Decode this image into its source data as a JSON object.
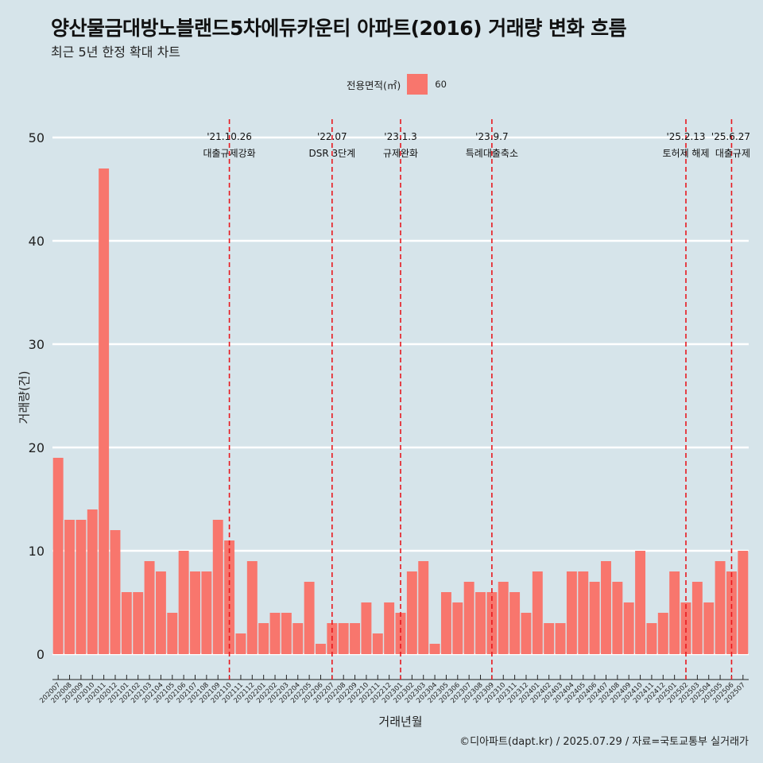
{
  "title": "양산물금대방노블랜드5차에듀카운티 아파트(2016) 거래량 변화 흐름",
  "subtitle": "최근 5년 한정 확대 차트",
  "caption": "©디아파트(dapt.kr) / 2025.07.29 / 자료=국토교통부 실거래가",
  "colors": {
    "bar": "#f8766d",
    "background": "#d6e4ea",
    "grid": "#ffffff",
    "event_line": "#e8181e"
  },
  "chart_data": {
    "type": "bar",
    "xlabel": "거래년월",
    "ylabel": "거래량(건)",
    "ylim": [
      0,
      50
    ],
    "yticks": [
      0,
      10,
      20,
      30,
      40,
      50
    ],
    "legend": {
      "title": "전용면적(㎡)",
      "position": "top"
    },
    "series": [
      {
        "name": "60",
        "color": "#f8766d"
      }
    ],
    "categories": [
      "202007",
      "202008",
      "202009",
      "202010",
      "202011",
      "202012",
      "202101",
      "202102",
      "202103",
      "202104",
      "202105",
      "202106",
      "202107",
      "202108",
      "202109",
      "202110",
      "202111",
      "202112",
      "202201",
      "202202",
      "202203",
      "202204",
      "202205",
      "202206",
      "202207",
      "202208",
      "202209",
      "202210",
      "202211",
      "202212",
      "202301",
      "202302",
      "202303",
      "202304",
      "202305",
      "202306",
      "202307",
      "202308",
      "202309",
      "202310",
      "202311",
      "202312",
      "202401",
      "202402",
      "202403",
      "202404",
      "202405",
      "202406",
      "202407",
      "202408",
      "202409",
      "202410",
      "202411",
      "202412",
      "202501",
      "202502",
      "202503",
      "202504",
      "202505",
      "202506",
      "202507"
    ],
    "values": [
      19,
      13,
      13,
      14,
      47,
      12,
      6,
      6,
      9,
      8,
      4,
      10,
      8,
      8,
      13,
      11,
      2,
      9,
      3,
      4,
      4,
      3,
      7,
      1,
      3,
      3,
      3,
      5,
      2,
      5,
      4,
      8,
      9,
      1,
      6,
      5,
      7,
      6,
      6,
      7,
      6,
      4,
      8,
      3,
      3,
      8,
      8,
      7,
      9,
      7,
      5,
      10,
      3,
      4,
      8,
      5,
      7,
      5,
      9,
      8,
      10
    ],
    "events": [
      {
        "category": "202110",
        "date": "'21.10.26",
        "label": "대출규제강화"
      },
      {
        "category": "202207",
        "date": "'22.07",
        "label": "DSR 3단계"
      },
      {
        "category": "202301",
        "date": "'23.1.3",
        "label": "규제완화"
      },
      {
        "category": "202309",
        "date": "'23.9.7",
        "label": "특례대출축소"
      },
      {
        "category": "202502",
        "date": "'25.2.13",
        "label": "토허제 해제"
      },
      {
        "category": "202506",
        "date": "'25.6.27",
        "label": "대출규제"
      }
    ]
  }
}
